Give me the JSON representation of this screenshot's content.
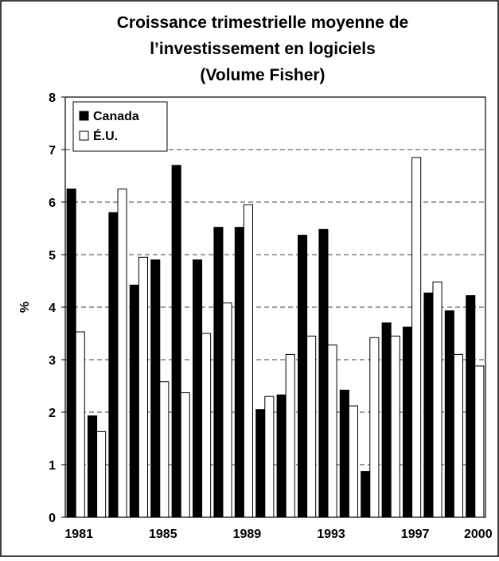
{
  "chart_data": {
    "type": "bar",
    "title": [
      "Croissance trimestrielle moyenne de",
      "l’investissement en logiciels",
      "(Volume Fisher)"
    ],
    "y_label": "%",
    "categories": [
      "1981",
      null,
      null,
      null,
      "1985",
      null,
      null,
      null,
      "1989",
      null,
      null,
      null,
      "1993",
      null,
      null,
      null,
      "1997",
      null,
      null,
      "2000"
    ],
    "series": [
      {
        "name": "Canada",
        "color": "#000000",
        "values": [
          6.25,
          1.93,
          5.8,
          4.42,
          4.9,
          6.7,
          4.9,
          5.52,
          5.52,
          2.05,
          2.33,
          5.37,
          5.48,
          2.42,
          0.87,
          3.7,
          3.62,
          4.27,
          3.93,
          4.22
        ]
      },
      {
        "name": "É.U.",
        "color": "#ffffff",
        "values": [
          3.53,
          1.63,
          6.25,
          4.95,
          2.58,
          2.37,
          3.5,
          4.08,
          5.95,
          2.3,
          3.1,
          3.45,
          3.28,
          2.12,
          3.42,
          3.45,
          6.85,
          4.48,
          3.1,
          2.88
        ]
      }
    ],
    "ylim": [
      0,
      8
    ],
    "yticks": [
      0,
      1,
      2,
      3,
      4,
      5,
      6,
      7,
      8
    ],
    "grid": true,
    "legend": "upper-left"
  }
}
